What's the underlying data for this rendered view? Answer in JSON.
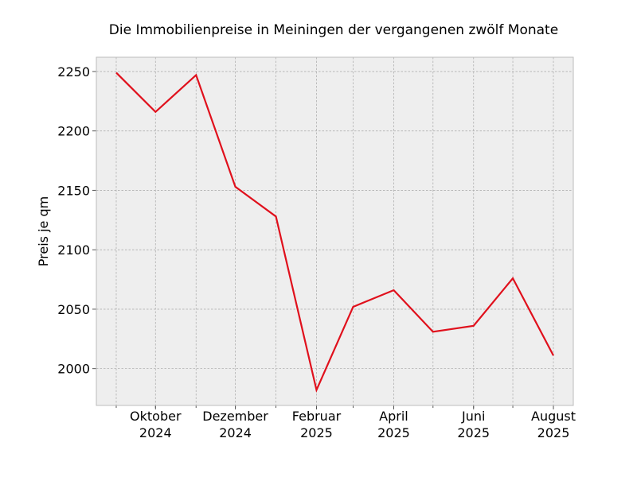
{
  "chart_data": {
    "type": "line",
    "title": "Die Immobilienpreise in Meiningen der vergangenen zwölf Monate",
    "xlabel": "",
    "ylabel": "Preis je qm",
    "x": [
      "2024-09-01",
      "2024-10-01",
      "2024-11-01",
      "2024-12-01",
      "2025-01-01",
      "2025-02-01",
      "2025-03-01",
      "2025-04-01",
      "2025-05-01",
      "2025-06-01",
      "2025-07-01",
      "2025-08-01"
    ],
    "x_tick_labels": [
      {
        "x": "2024-10-01",
        "line1": "Oktober",
        "line2": "2024"
      },
      {
        "x": "2024-12-01",
        "line1": "Dezember",
        "line2": "2024"
      },
      {
        "x": "2025-02-01",
        "line1": "Februar",
        "line2": "2025"
      },
      {
        "x": "2025-04-01",
        "line1": "April",
        "line2": "2025"
      },
      {
        "x": "2025-06-01",
        "line1": "Juni",
        "line2": "2025"
      },
      {
        "x": "2025-08-01",
        "line1": "August",
        "line2": "2025"
      }
    ],
    "y_ticks": [
      "2000",
      "2050",
      "2100",
      "2150",
      "2200",
      "2250"
    ],
    "series": [
      {
        "values": [
          2249,
          2216,
          2247,
          2153,
          2128,
          1982,
          2052,
          2066,
          2031,
          2036,
          2076,
          2011
        ],
        "color": "#e0101c"
      }
    ],
    "ylim": [
      1969,
      2262
    ],
    "grid": true,
    "legend": "none",
    "background": "#eeeeee"
  }
}
